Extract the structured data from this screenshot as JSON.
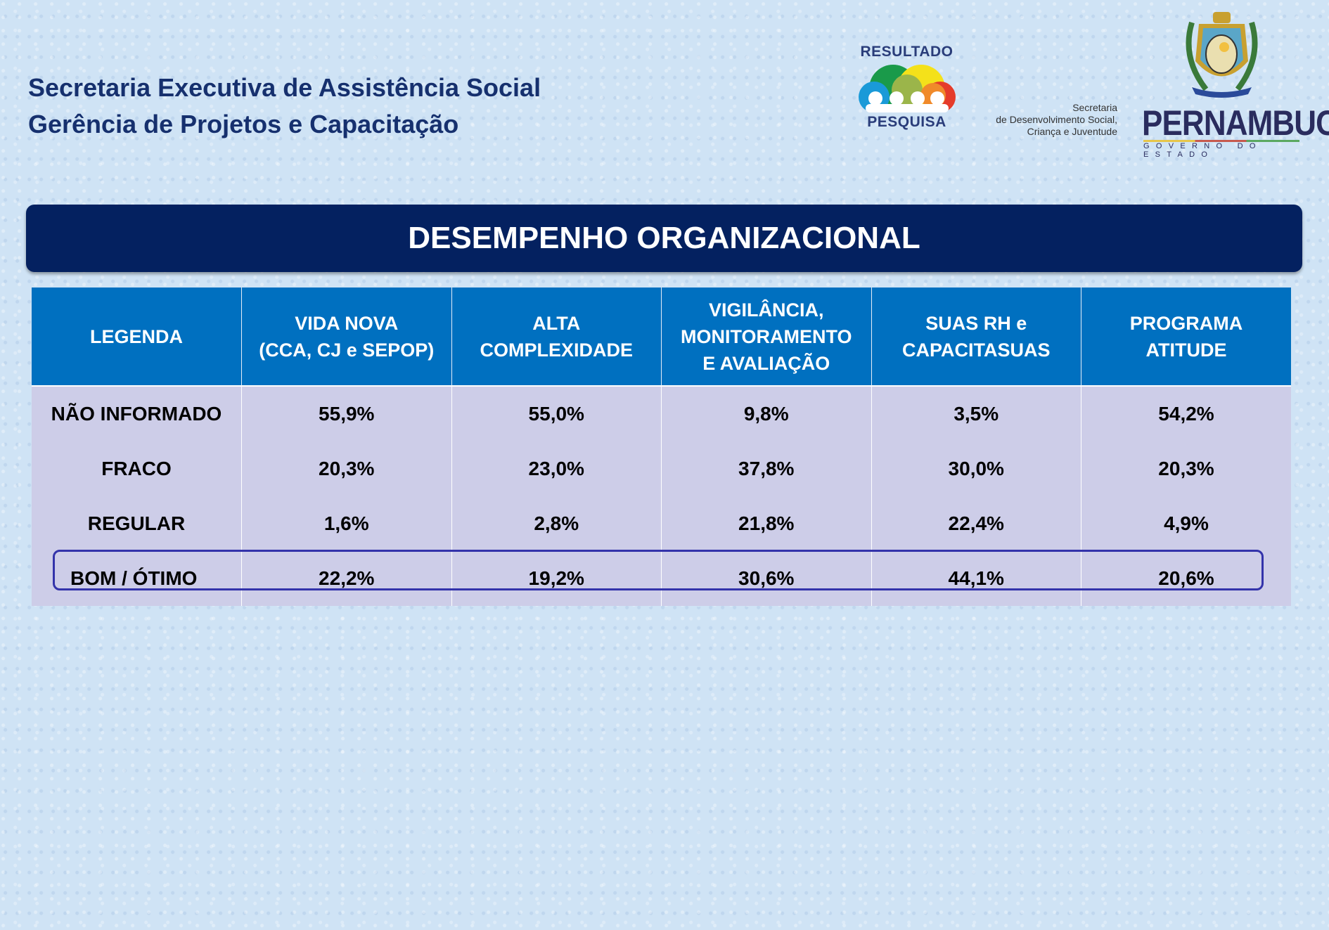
{
  "header": {
    "line1": "Secretaria Executiva de Assistência Social",
    "line2": "Gerência de Projetos e Capacitação"
  },
  "logos": {
    "resultado_top": "RESULTADO",
    "resultado_bottom": "PESQUISA",
    "secretaria": [
      "Secretaria",
      "de Desenvolvimento Social,",
      "Criança e Juventude"
    ],
    "state": "PERNAMBUCO",
    "state_sub": "GOVERNO DO ESTADO"
  },
  "banner": {
    "title": "DESEMPENHO ORGANIZACIONAL"
  },
  "table": {
    "headers": [
      [
        "LEGENDA"
      ],
      [
        "VIDA NOVA",
        "(CCA, CJ e SEPOP)"
      ],
      [
        "ALTA",
        "COMPLEXIDADE"
      ],
      [
        "VIGILÂNCIA,",
        "MONITORAMENTO",
        "E AVALIAÇÃO"
      ],
      [
        "SUAS RH e",
        "CAPACITASUAS"
      ],
      [
        "PROGRAMA",
        "ATITUDE"
      ]
    ],
    "rows": [
      [
        "NÃO INFORMADO",
        "55,9%",
        "55,0%",
        "9,8%",
        "3,5%",
        "54,2%"
      ],
      [
        "FRACO",
        "20,3%",
        "23,0%",
        "37,8%",
        "30,0%",
        "20,3%"
      ],
      [
        "REGULAR",
        "1,6%",
        "2,8%",
        "21,8%",
        "22,4%",
        "4,9%"
      ],
      [
        "BOM  / ÓTIMO",
        "22,2%",
        "19,2%",
        "30,6%",
        "44,1%",
        "20,6%"
      ]
    ],
    "highlight_color": "#3333aa"
  },
  "colors": {
    "navy": "#042160",
    "header_blue": "#0070c0",
    "cell_bg": "#cdcde8",
    "title_text": "#16306e"
  }
}
